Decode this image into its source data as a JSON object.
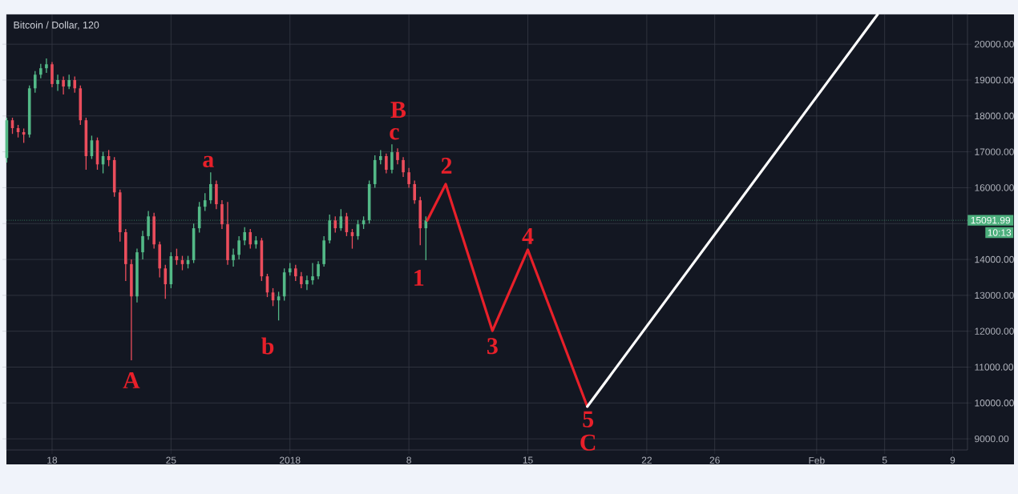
{
  "chart_data": {
    "type": "candlestick",
    "title": "Bitcoin / Dollar, 120",
    "x": [
      "2017-12-15T08:00",
      "2017-12-15T16:00",
      "2017-12-16T00:00",
      "2017-12-16T08:00",
      "2017-12-16T16:00",
      "2017-12-17T00:00",
      "2017-12-17T08:00",
      "2017-12-17T16:00",
      "2017-12-18T00:00",
      "2017-12-18T08:00",
      "2017-12-18T16:00",
      "2017-12-19T00:00",
      "2017-12-19T08:00",
      "2017-12-19T16:00",
      "2017-12-20T00:00",
      "2017-12-20T08:00",
      "2017-12-20T16:00",
      "2017-12-21T00:00",
      "2017-12-21T08:00",
      "2017-12-21T16:00",
      "2017-12-22T00:00",
      "2017-12-22T08:00",
      "2017-12-22T16:00",
      "2017-12-23T00:00",
      "2017-12-23T08:00",
      "2017-12-23T16:00",
      "2017-12-24T00:00",
      "2017-12-24T08:00",
      "2017-12-24T16:00",
      "2017-12-25T00:00",
      "2017-12-25T08:00",
      "2017-12-25T16:00",
      "2017-12-26T00:00",
      "2017-12-26T08:00",
      "2017-12-26T16:00",
      "2017-12-27T00:00",
      "2017-12-27T08:00",
      "2017-12-27T16:00",
      "2017-12-28T00:00",
      "2017-12-28T08:00",
      "2017-12-28T16:00",
      "2017-12-29T00:00",
      "2017-12-29T08:00",
      "2017-12-29T16:00",
      "2017-12-30T00:00",
      "2017-12-30T08:00",
      "2017-12-30T16:00",
      "2017-12-31T00:00",
      "2017-12-31T08:00",
      "2017-12-31T16:00",
      "2018-01-01T00:00",
      "2018-01-01T08:00",
      "2018-01-01T16:00",
      "2018-01-02T00:00",
      "2018-01-02T08:00",
      "2018-01-02T16:00",
      "2018-01-03T00:00",
      "2018-01-03T08:00",
      "2018-01-03T16:00",
      "2018-01-04T00:00",
      "2018-01-04T08:00",
      "2018-01-04T16:00",
      "2018-01-05T00:00",
      "2018-01-05T08:00",
      "2018-01-05T16:00",
      "2018-01-06T00:00",
      "2018-01-06T08:00",
      "2018-01-06T16:00",
      "2018-01-07T00:00",
      "2018-01-07T08:00",
      "2018-01-07T16:00",
      "2018-01-08T00:00",
      "2018-01-08T08:00",
      "2018-01-08T16:00",
      "2018-01-09T00:00"
    ],
    "ohlc": [
      [
        16830,
        17950,
        16700,
        17880
      ],
      [
        17880,
        17950,
        17500,
        17660
      ],
      [
        17660,
        17750,
        17400,
        17550
      ],
      [
        17550,
        17650,
        17250,
        17480
      ],
      [
        17480,
        18850,
        17400,
        18770
      ],
      [
        18770,
        19250,
        18650,
        19150
      ],
      [
        19150,
        19450,
        19050,
        19330
      ],
      [
        19330,
        19600,
        19200,
        19440
      ],
      [
        19440,
        19500,
        18800,
        18890
      ],
      [
        18890,
        19150,
        18700,
        19000
      ],
      [
        19000,
        19100,
        18600,
        18820
      ],
      [
        18820,
        19150,
        18750,
        19000
      ],
      [
        19000,
        19100,
        18650,
        18770
      ],
      [
        18770,
        18850,
        17750,
        17880
      ],
      [
        17880,
        17950,
        16500,
        16880
      ],
      [
        16880,
        17450,
        16800,
        17320
      ],
      [
        17320,
        17400,
        16500,
        16650
      ],
      [
        16650,
        17000,
        16400,
        16880
      ],
      [
        16880,
        17050,
        16600,
        16770
      ],
      [
        16770,
        16850,
        15750,
        15870
      ],
      [
        15870,
        15950,
        14500,
        14760
      ],
      [
        14760,
        14850,
        13400,
        13870
      ],
      [
        13870,
        14000,
        11190,
        12970
      ],
      [
        12970,
        14300,
        12800,
        14200
      ],
      [
        14200,
        14800,
        14000,
        14650
      ],
      [
        14650,
        15350,
        14550,
        15200
      ],
      [
        15200,
        15300,
        14300,
        14420
      ],
      [
        14420,
        14500,
        13500,
        13750
      ],
      [
        13750,
        13850,
        12900,
        13310
      ],
      [
        13310,
        14200,
        13200,
        14090
      ],
      [
        14090,
        14300,
        13850,
        13980
      ],
      [
        13980,
        14100,
        13700,
        13870
      ],
      [
        13870,
        14100,
        13750,
        13980
      ],
      [
        13980,
        15000,
        13900,
        14870
      ],
      [
        14870,
        15600,
        14750,
        15470
      ],
      [
        15470,
        15850,
        15350,
        15650
      ],
      [
        15650,
        16430,
        15550,
        16100
      ],
      [
        16100,
        16200,
        15400,
        15540
      ],
      [
        15540,
        15650,
        14850,
        14980
      ],
      [
        14980,
        15600,
        13850,
        13980
      ],
      [
        13980,
        14300,
        13800,
        14130
      ],
      [
        14130,
        14650,
        14000,
        14530
      ],
      [
        14530,
        14900,
        14400,
        14760
      ],
      [
        14760,
        14850,
        14300,
        14420
      ],
      [
        14420,
        14650,
        14300,
        14530
      ],
      [
        14530,
        14600,
        13400,
        13530
      ],
      [
        13530,
        13600,
        12950,
        13080
      ],
      [
        13080,
        13200,
        12700,
        12860
      ],
      [
        12860,
        13100,
        12300,
        12970
      ],
      [
        12970,
        13750,
        12850,
        13640
      ],
      [
        13640,
        13900,
        13550,
        13750
      ],
      [
        13750,
        13850,
        13400,
        13530
      ],
      [
        13530,
        13650,
        13200,
        13310
      ],
      [
        13310,
        13550,
        13150,
        13420
      ],
      [
        13420,
        13900,
        13300,
        13530
      ],
      [
        13530,
        13950,
        13450,
        13870
      ],
      [
        13870,
        14650,
        13800,
        14530
      ],
      [
        14530,
        15250,
        14450,
        15090
      ],
      [
        15090,
        15200,
        14750,
        14870
      ],
      [
        14870,
        15400,
        14800,
        15200
      ],
      [
        15200,
        15300,
        14650,
        14760
      ],
      [
        14760,
        14850,
        14300,
        14650
      ],
      [
        14650,
        15100,
        14550,
        14980
      ],
      [
        14980,
        15200,
        14850,
        15090
      ],
      [
        15090,
        16200,
        15000,
        16100
      ],
      [
        16100,
        16900,
        16000,
        16770
      ],
      [
        16770,
        17050,
        16650,
        16880
      ],
      [
        16880,
        16950,
        16400,
        16500
      ],
      [
        16500,
        17210,
        16400,
        16990
      ],
      [
        16990,
        17100,
        16650,
        16770
      ],
      [
        16770,
        16850,
        16300,
        16430
      ],
      [
        16430,
        16550,
        16000,
        16100
      ],
      [
        16100,
        16200,
        15550,
        15650
      ],
      [
        15650,
        15750,
        14400,
        14870
      ],
      [
        14870,
        15200,
        13980,
        15090
      ]
    ],
    "series": [
      {
        "type": "line",
        "color": "#e8202a",
        "x": [
          "2018-01-09T02:00",
          "2018-01-10T04:00",
          "2018-01-12T22:00",
          "2018-01-15T00:00",
          "2018-01-18T12:00"
        ],
        "values": [
          15090,
          16100,
          12010,
          14270,
          9900
        ]
      },
      {
        "type": "line",
        "color": "#ffffff",
        "x": [
          "2018-01-18T12:00",
          "2018-02-04T14:00"
        ],
        "values": [
          9900,
          20830
        ]
      }
    ],
    "xlim": [
      "2017-12-15T07:30",
      "2018-02-09T21:00"
    ],
    "ylim": [
      8690,
      20830
    ],
    "xticks": [
      {
        "value": "2017-12-18",
        "label": "18"
      },
      {
        "value": "2017-12-25",
        "label": "25"
      },
      {
        "value": "2018-01-01",
        "label": "2018"
      },
      {
        "value": "2018-01-08",
        "label": "8"
      },
      {
        "value": "2018-01-15",
        "label": "15"
      },
      {
        "value": "2018-01-22",
        "label": "22"
      },
      {
        "value": "2018-01-26",
        "label": "26"
      },
      {
        "value": "2018-02-01",
        "label": "Feb"
      },
      {
        "value": "2018-02-05",
        "label": "5"
      },
      {
        "value": "2018-02-09",
        "label": "9"
      }
    ],
    "yticks": [
      {
        "value": 9000,
        "label": "9000.00"
      },
      {
        "value": 10000,
        "label": "10000.00"
      },
      {
        "value": 11000,
        "label": "11000.00"
      },
      {
        "value": 12000,
        "label": "12000.00"
      },
      {
        "value": 13000,
        "label": "13000.00"
      },
      {
        "value": 14000,
        "label": "14000.00"
      },
      {
        "value": 15000,
        "label": null
      },
      {
        "value": 16000,
        "label": "16000.00"
      },
      {
        "value": 17000,
        "label": "17000.00"
      },
      {
        "value": 18000,
        "label": "18000.00"
      },
      {
        "value": 19000,
        "label": "19000.00"
      },
      {
        "value": 20000,
        "label": "20000.00"
      }
    ],
    "grid": true,
    "ref_lines": [
      {
        "axis": "y",
        "value": 15091.99,
        "label": "15091.99",
        "color": "#4caf7d",
        "line_style": "dotted"
      }
    ],
    "annotations": [
      {
        "text": "A",
        "x": "2017-12-22T16:00",
        "y": 11190
      },
      "a",
      "b",
      {
        "text": "B",
        "x": "2018-01-07T00:00",
        "y": 17210
      },
      {
        "text": "c",
        "x": "2018-01-07T00:00",
        "y": 17210
      },
      {
        "text": "1",
        "x": "2018-01-09T00:00",
        "y": 13980
      },
      {
        "text": "2",
        "x": "2018-01-10T04:00",
        "y": 16100
      },
      {
        "text": "3",
        "x": "2018-01-12T22:00",
        "y": 12010
      },
      {
        "text": "4",
        "x": "2018-01-15T00:00",
        "y": 14270
      },
      {
        "text": "5",
        "x": "2018-01-18T12:00",
        "y": 9900
      },
      {
        "text": "C",
        "x": "2018-01-18T12:00",
        "y": 9900
      },
      "10:13"
    ]
  }
}
